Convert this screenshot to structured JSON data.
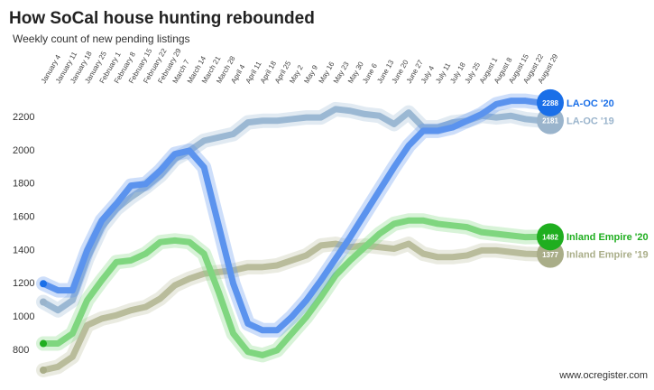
{
  "chart_data": {
    "type": "line",
    "title": "How SoCal house hunting rebounded",
    "subtitle": "Weekly count of new pending listings",
    "credit": "www.ocregister.com",
    "categories": [
      "January 4",
      "January 11",
      "January 18",
      "January 25",
      "February 1",
      "February 8",
      "February 15",
      "February 22",
      "February 29",
      "March 7",
      "March 14",
      "March 21",
      "March 28",
      "April 4",
      "April 11",
      "April 18",
      "April 25",
      "May 2",
      "May 9",
      "May 16",
      "May 23",
      "May 30",
      "June 6",
      "June 13",
      "June 20",
      "June 27",
      "July 4",
      "July 11",
      "July 18",
      "July 25",
      "August 1",
      "August 8",
      "August 15",
      "August 22",
      "August 29"
    ],
    "ylim": [
      680,
      2320
    ],
    "yticks": [
      800,
      1000,
      1200,
      1400,
      1600,
      1800,
      2000,
      2200
    ],
    "grid": false,
    "series": [
      {
        "name": "LA-OC '19",
        "color": "#9bb8d3",
        "dot": "#9ab4cc",
        "values": [
          1090,
          1040,
          1100,
          1350,
          1540,
          1650,
          1720,
          1780,
          1850,
          1950,
          2000,
          2060,
          2080,
          2100,
          2170,
          2180,
          2180,
          2190,
          2200,
          2200,
          2250,
          2240,
          2220,
          2210,
          2160,
          2230,
          2140,
          2140,
          2170,
          2180,
          2210,
          2200,
          2210,
          2190,
          2181
        ]
      },
      {
        "name": "Inland Empire '19",
        "color": "#b9bc9b",
        "dot": "#a9ad88",
        "values": [
          680,
          700,
          760,
          950,
          990,
          1010,
          1040,
          1060,
          1110,
          1190,
          1230,
          1260,
          1270,
          1280,
          1300,
          1300,
          1310,
          1340,
          1370,
          1430,
          1440,
          1420,
          1430,
          1420,
          1410,
          1440,
          1380,
          1360,
          1360,
          1370,
          1400,
          1400,
          1390,
          1380,
          1377
        ]
      },
      {
        "name": "Inland Empire '20",
        "color": "#7fd67f",
        "dot": "#1fae1f",
        "values": [
          840,
          840,
          900,
          1100,
          1220,
          1330,
          1340,
          1380,
          1450,
          1460,
          1450,
          1380,
          1150,
          900,
          790,
          770,
          800,
          900,
          1000,
          1120,
          1250,
          1340,
          1420,
          1500,
          1560,
          1580,
          1580,
          1560,
          1550,
          1540,
          1510,
          1500,
          1490,
          1480,
          1482
        ]
      },
      {
        "name": "LA-OC '20",
        "color": "#5b93ee",
        "dot": "#1a6fe8",
        "values": [
          1200,
          1160,
          1160,
          1400,
          1580,
          1680,
          1790,
          1800,
          1880,
          1980,
          2000,
          1900,
          1550,
          1200,
          960,
          920,
          920,
          1000,
          1100,
          1220,
          1350,
          1480,
          1620,
          1760,
          1900,
          2030,
          2120,
          2120,
          2140,
          2180,
          2220,
          2280,
          2300,
          2300,
          2288
        ]
      }
    ]
  }
}
